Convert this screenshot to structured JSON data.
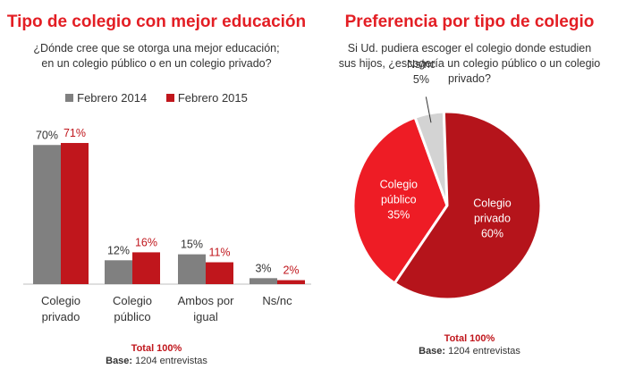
{
  "left": {
    "title": "Tipo de colegio con mejor educación",
    "question_line1": "¿Dónde cree que se otorga una mejor educación;",
    "question_line2": "en un colegio público o en un colegio privado?",
    "total": "Total 100%",
    "base_label": "Base:",
    "base_value": "1204 entrevistas"
  },
  "right": {
    "title": "Preferencia por tipo de colegio",
    "question_line1": "Si Ud. pudiera escoger el colegio donde estudien",
    "question_line2": "sus hijos, ¿escogería un colegio público o un colegio",
    "question_line3": "privado?",
    "total": "Total 100%",
    "base_label": "Base:",
    "base_value": "1204 entrevistas"
  },
  "chart_data": [
    {
      "type": "bar",
      "title": "Tipo de colegio con mejor educación",
      "categories": [
        [
          "Colegio",
          "privado"
        ],
        [
          "Colegio",
          "público"
        ],
        [
          "Ambos por",
          "igual"
        ],
        [
          "Ns/nc"
        ]
      ],
      "series": [
        {
          "name": "Febrero 2014",
          "color": "#808080",
          "values": [
            70,
            12,
            15,
            3
          ],
          "labels": [
            "70%",
            "12%",
            "15%",
            "3%"
          ],
          "label_color": "#333333"
        },
        {
          "name": "Febrero 2015",
          "color": "#c0161c",
          "values": [
            71,
            16,
            11,
            2
          ],
          "labels": [
            "71%",
            "16%",
            "11%",
            "2%"
          ],
          "label_color": "#c0161c"
        }
      ],
      "ylim": [
        0,
        80
      ],
      "legend": "top"
    },
    {
      "type": "pie",
      "title": "Preferencia por tipo de colegio",
      "slices": [
        {
          "label": "Colegio público",
          "lines": [
            "Colegio",
            "público",
            "35%"
          ],
          "value": 35,
          "color": "#ee1c25"
        },
        {
          "label": "Ns/nc",
          "lines": [
            "Ns/nc",
            "5%"
          ],
          "value": 5,
          "color": "#d3d3d3"
        },
        {
          "label": "Colegio privado",
          "lines": [
            "Colegio",
            "privado",
            "60%"
          ],
          "value": 60,
          "color": "#b5141b"
        }
      ]
    }
  ]
}
